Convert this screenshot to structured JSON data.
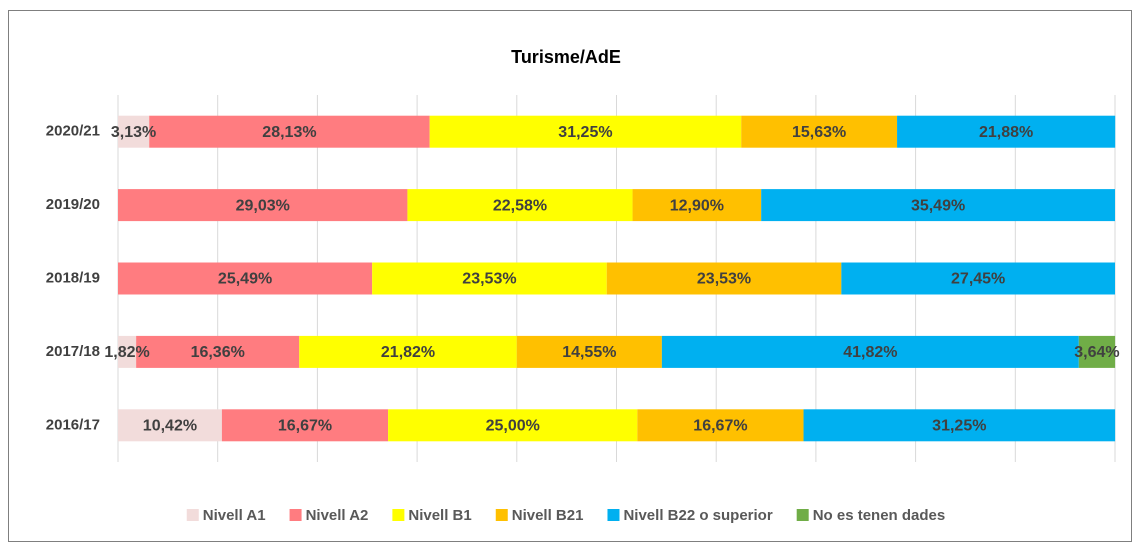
{
  "chart_data": {
    "type": "stacked_bar_horizontal",
    "title": "Turisme/AdE",
    "categories": [
      "2020/21",
      "2019/20",
      "2018/19",
      "2017/18",
      "2016/17"
    ],
    "series": [
      {
        "name": "Nivell A1",
        "color": "#f2dcdb",
        "values": [
          3.13,
          null,
          null,
          1.82,
          10.42
        ],
        "value_labels": [
          "3,13%",
          null,
          null,
          "1,82%",
          "10,42%"
        ]
      },
      {
        "name": "Nivell A2",
        "color": "#ff7c80",
        "values": [
          28.13,
          29.03,
          25.49,
          16.36,
          16.67
        ],
        "value_labels": [
          "28,13%",
          "29,03%",
          "25,49%",
          "16,36%",
          "16,67%"
        ]
      },
      {
        "name": "Nivell B1",
        "color": "#ffff00",
        "values": [
          31.25,
          22.58,
          23.53,
          21.82,
          25.0
        ],
        "value_labels": [
          "31,25%",
          "22,58%",
          "23,53%",
          "21,82%",
          "25,00%"
        ]
      },
      {
        "name": "Nivell B21",
        "color": "#ffc000",
        "values": [
          15.63,
          12.9,
          23.53,
          14.55,
          16.67
        ],
        "value_labels": [
          "15,63%",
          "12,90%",
          "23,53%",
          "14,55%",
          "16,67%"
        ]
      },
      {
        "name": "Nivell B22 o superior",
        "color": "#00b0f0",
        "values": [
          21.88,
          35.49,
          27.45,
          41.82,
          31.25
        ],
        "value_labels": [
          "21,88%",
          "35,49%",
          "27,45%",
          "41,82%",
          "31,25%"
        ]
      },
      {
        "name": "No es tenen dades",
        "color": "#70ad47",
        "values": [
          null,
          null,
          null,
          3.64,
          null
        ],
        "value_labels": [
          null,
          null,
          null,
          "3,64%",
          null
        ]
      }
    ],
    "xlim": [
      0,
      100
    ],
    "xticks": [
      0,
      10,
      20,
      30,
      40,
      50,
      60,
      70,
      80,
      90,
      100
    ],
    "grid": true,
    "legend": "bottom"
  }
}
